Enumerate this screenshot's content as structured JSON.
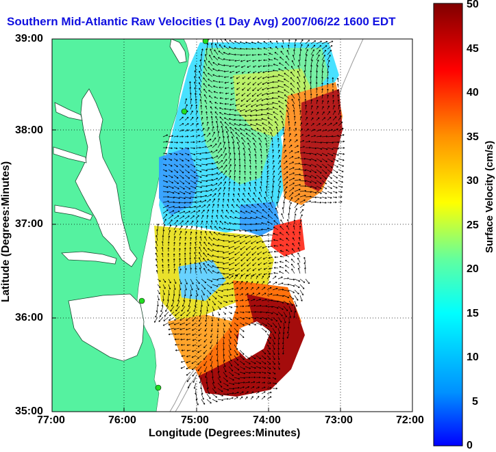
{
  "title": "Southern Mid-Atlantic Raw Velocities (1 Day Avg) 2007/06/22 1600 EDT",
  "xaxis": {
    "label": "Longitude (Degrees:Minutes)",
    "ticks": [
      "77:00",
      "76:00",
      "75:00",
      "74:00",
      "73:00",
      "72:00"
    ]
  },
  "yaxis": {
    "label": "Latitude (Degrees:Minutes)",
    "ticks": [
      "39:00",
      "38:00",
      "37:00",
      "36:00",
      "35:00"
    ]
  },
  "colorbar": {
    "label": "Surface Velocity (cm/s)",
    "ticks": [
      "50",
      "45",
      "40",
      "35",
      "30",
      "25",
      "20",
      "15",
      "10",
      "5",
      "0"
    ],
    "min": 0,
    "max": 50
  },
  "colors": {
    "land": "#55f2a0",
    "title": "#1010e0",
    "station": "#22dd22"
  }
}
